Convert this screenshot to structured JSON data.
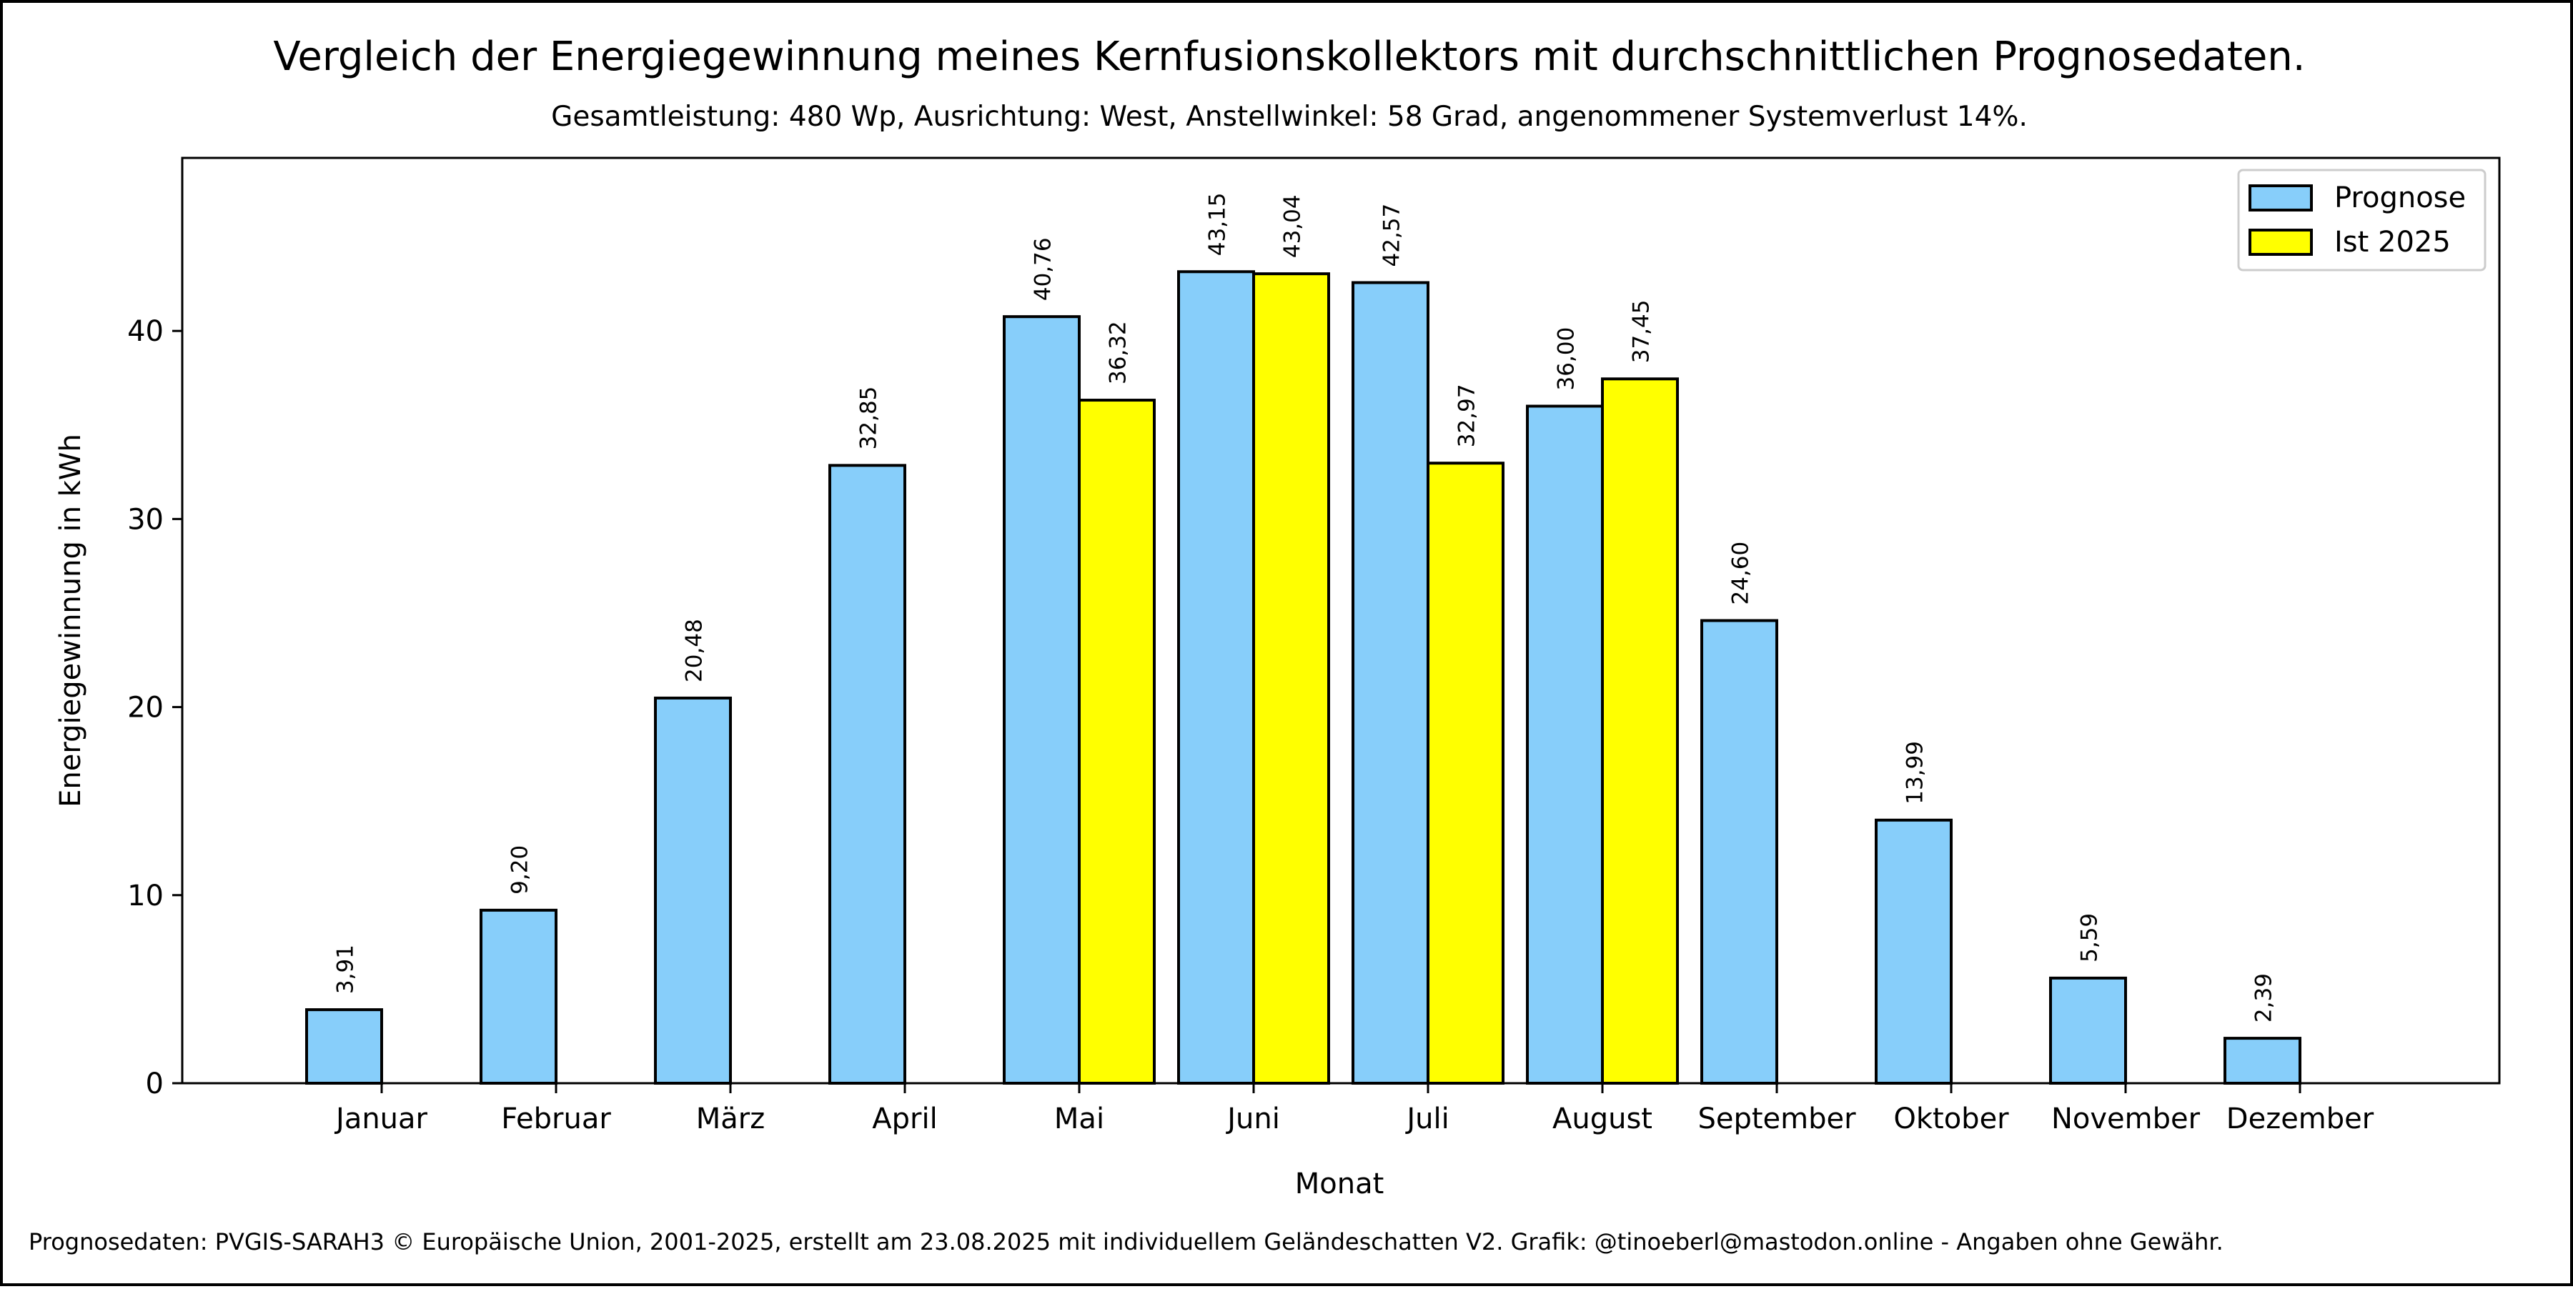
{
  "chart_data": {
    "type": "bar",
    "title": "Vergleich der Energiegewinnung meines Kernfusionskollektors mit durchschnittlichen Prognosedaten.",
    "subtitle": "Gesamtleistung: 480 Wp, Ausrichtung: West, Anstellwinkel: 58 Grad, angenommener Systemverlust 14%.",
    "xlabel": "Monat",
    "ylabel": "Energiegewinnung in kWh",
    "ylim": [
      0,
      49.2
    ],
    "yticks": [
      0,
      10,
      20,
      30,
      40
    ],
    "ytick_labels": [
      "0",
      "10",
      "20",
      "30",
      "40"
    ],
    "grid": false,
    "legend_position": "top-right",
    "categories": [
      "Januar",
      "Februar",
      "März",
      "April",
      "Mai",
      "Juni",
      "Juli",
      "August",
      "September",
      "Oktober",
      "November",
      "Dezember"
    ],
    "series": [
      {
        "name": "Prognose",
        "color": "#87CEFA",
        "values": [
          3.91,
          9.2,
          20.48,
          32.85,
          40.76,
          43.15,
          42.57,
          36.0,
          24.6,
          13.99,
          5.59,
          2.39
        ],
        "labels": [
          "3,91",
          "9,20",
          "20,48",
          "32,85",
          "40,76",
          "43,15",
          "42,57",
          "36,00",
          "24,60",
          "13,99",
          "5,59",
          "2,39"
        ]
      },
      {
        "name": "Ist 2025",
        "color": "#FFFF00",
        "values": [
          0,
          0,
          0,
          0,
          36.32,
          43.04,
          32.97,
          37.45,
          0,
          0,
          0,
          0
        ],
        "labels": [
          null,
          null,
          null,
          null,
          "36,32",
          "43,04",
          "32,97",
          "37,45",
          null,
          null,
          null,
          null
        ]
      }
    ],
    "footnote": "Prognosedaten: PVGIS-SARAH3 © Europäische Union, 2001-2025, erstellt am 23.08.2025 mit individuellem Geländeschatten V2. Grafik: @tinoeberl@mastodon.online - Angaben ohne Gewähr."
  }
}
